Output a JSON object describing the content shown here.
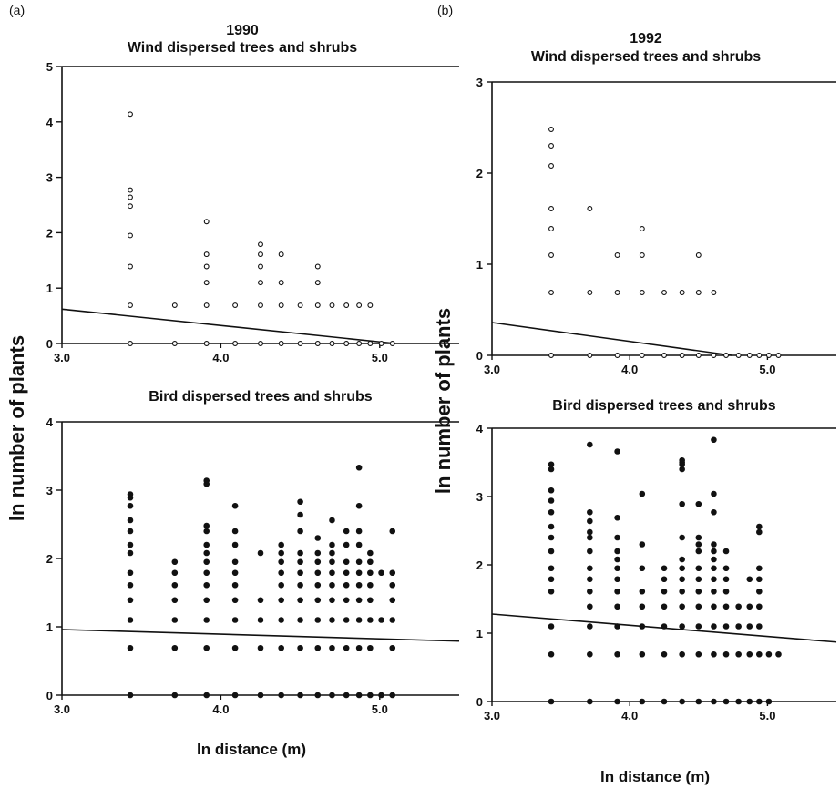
{
  "figure": {
    "y_axis_label_left": "ln number of plants",
    "y_axis_label_right": "ln number of plants"
  },
  "chart_data": [
    {
      "type": "scatter",
      "panel_label": "(a)",
      "title": "1990",
      "subtitle": "Wind dispersed trees and shrubs",
      "xlabel": "",
      "ylabel": "ln number of plants",
      "xlim": [
        3.0,
        5.5
      ],
      "ylim": [
        0,
        5
      ],
      "xticks": [
        3.0,
        4.0,
        5.0
      ],
      "xtick_labels": [
        "3.0",
        "4.0",
        "5.0"
      ],
      "yticks": [
        0,
        1,
        2,
        3,
        4,
        5
      ],
      "ytick_labels": [
        "0",
        "1",
        "2",
        "3",
        "4",
        "5"
      ],
      "marker": "open",
      "regression_line": {
        "x": [
          3.0,
          5.1
        ],
        "y": [
          0.62,
          0.0
        ]
      },
      "points": [
        [
          3.43,
          0
        ],
        [
          3.71,
          0
        ],
        [
          3.91,
          0
        ],
        [
          4.09,
          0
        ],
        [
          4.25,
          0
        ],
        [
          4.38,
          0
        ],
        [
          4.5,
          0
        ],
        [
          4.61,
          0
        ],
        [
          4.7,
          0
        ],
        [
          4.79,
          0
        ],
        [
          4.87,
          0
        ],
        [
          4.94,
          0
        ],
        [
          5.01,
          0
        ],
        [
          5.08,
          0
        ],
        [
          3.43,
          0.69
        ],
        [
          3.43,
          1.39
        ],
        [
          3.43,
          1.95
        ],
        [
          3.43,
          2.48
        ],
        [
          3.43,
          2.64
        ],
        [
          3.43,
          2.77
        ],
        [
          3.43,
          4.14
        ],
        [
          3.71,
          0.69
        ],
        [
          3.91,
          0.69
        ],
        [
          3.91,
          1.1
        ],
        [
          3.91,
          1.39
        ],
        [
          3.91,
          1.61
        ],
        [
          3.91,
          2.2
        ],
        [
          4.09,
          0.69
        ],
        [
          4.25,
          0.69
        ],
        [
          4.25,
          1.1
        ],
        [
          4.25,
          1.39
        ],
        [
          4.25,
          1.61
        ],
        [
          4.25,
          1.79
        ],
        [
          4.38,
          0.69
        ],
        [
          4.38,
          1.1
        ],
        [
          4.38,
          1.61
        ],
        [
          4.5,
          0.69
        ],
        [
          4.61,
          0.69
        ],
        [
          4.61,
          1.1
        ],
        [
          4.61,
          1.39
        ],
        [
          4.7,
          0.69
        ],
        [
          4.79,
          0.69
        ],
        [
          4.87,
          0.69
        ],
        [
          4.94,
          0.69
        ]
      ]
    },
    {
      "type": "scatter",
      "panel_label": "(b)",
      "title": "1992",
      "subtitle": "Wind dispersed trees and shrubs",
      "xlabel": "",
      "ylabel": "ln number of plants",
      "xlim": [
        3.0,
        5.5
      ],
      "ylim": [
        0,
        3
      ],
      "xticks": [
        3.0,
        4.0,
        5.0
      ],
      "xtick_labels": [
        "3.0",
        "4.0",
        "5.0"
      ],
      "yticks": [
        0,
        1,
        2,
        3
      ],
      "ytick_labels": [
        "0",
        "1",
        "2",
        "3"
      ],
      "marker": "open",
      "regression_line": {
        "x": [
          3.0,
          4.74
        ],
        "y": [
          0.36,
          0.0
        ]
      },
      "points": [
        [
          3.43,
          0
        ],
        [
          3.71,
          0
        ],
        [
          3.91,
          0
        ],
        [
          4.09,
          0
        ],
        [
          4.25,
          0
        ],
        [
          4.38,
          0
        ],
        [
          4.5,
          0
        ],
        [
          4.61,
          0
        ],
        [
          4.7,
          0
        ],
        [
          4.79,
          0
        ],
        [
          4.87,
          0
        ],
        [
          4.94,
          0
        ],
        [
          5.01,
          0
        ],
        [
          5.08,
          0
        ],
        [
          3.43,
          0.69
        ],
        [
          3.43,
          1.1
        ],
        [
          3.43,
          1.39
        ],
        [
          3.43,
          1.61
        ],
        [
          3.43,
          2.08
        ],
        [
          3.43,
          2.3
        ],
        [
          3.43,
          2.48
        ],
        [
          3.71,
          0.69
        ],
        [
          3.71,
          1.61
        ],
        [
          3.91,
          0.69
        ],
        [
          3.91,
          1.1
        ],
        [
          4.09,
          0.69
        ],
        [
          4.09,
          1.1
        ],
        [
          4.09,
          1.39
        ],
        [
          4.25,
          0.69
        ],
        [
          4.38,
          0.69
        ],
        [
          4.5,
          0.69
        ],
        [
          4.5,
          1.1
        ],
        [
          4.61,
          0.69
        ]
      ]
    },
    {
      "type": "scatter",
      "panel_label": "",
      "title": "Bird dispersed trees and shrubs",
      "xlabel": "ln distance (m)",
      "ylabel": "ln number of plants",
      "xlim": [
        3.0,
        5.5
      ],
      "ylim": [
        0,
        4
      ],
      "xticks": [
        3.0,
        4.0,
        5.0
      ],
      "xtick_labels": [
        "3.0",
        "4.0",
        "5.0"
      ],
      "yticks": [
        0,
        1,
        2,
        3,
        4
      ],
      "ytick_labels": [
        "0",
        "1",
        "2",
        "3",
        "4"
      ],
      "marker": "filled",
      "regression_line": {
        "x": [
          3.0,
          5.5
        ],
        "y": [
          0.96,
          0.79
        ]
      },
      "points": [
        [
          3.43,
          0
        ],
        [
          3.71,
          0
        ],
        [
          3.91,
          0
        ],
        [
          4.09,
          0
        ],
        [
          4.25,
          0
        ],
        [
          4.38,
          0
        ],
        [
          4.5,
          0
        ],
        [
          4.61,
          0
        ],
        [
          4.7,
          0
        ],
        [
          4.79,
          0
        ],
        [
          4.87,
          0
        ],
        [
          4.94,
          0
        ],
        [
          5.01,
          0
        ],
        [
          5.08,
          0
        ],
        [
          3.43,
          0.69
        ],
        [
          3.43,
          1.1
        ],
        [
          3.43,
          1.39
        ],
        [
          3.43,
          1.61
        ],
        [
          3.43,
          1.79
        ],
        [
          3.43,
          2.08
        ],
        [
          3.43,
          2.2
        ],
        [
          3.43,
          2.4
        ],
        [
          3.43,
          2.56
        ],
        [
          3.43,
          2.77
        ],
        [
          3.43,
          2.89
        ],
        [
          3.43,
          2.94
        ],
        [
          3.71,
          0.69
        ],
        [
          3.71,
          1.1
        ],
        [
          3.71,
          1.39
        ],
        [
          3.71,
          1.61
        ],
        [
          3.71,
          1.79
        ],
        [
          3.71,
          1.95
        ],
        [
          3.91,
          0.69
        ],
        [
          3.91,
          1.1
        ],
        [
          3.91,
          1.39
        ],
        [
          3.91,
          1.61
        ],
        [
          3.91,
          1.79
        ],
        [
          3.91,
          1.95
        ],
        [
          3.91,
          2.08
        ],
        [
          3.91,
          2.2
        ],
        [
          3.91,
          2.4
        ],
        [
          3.91,
          2.48
        ],
        [
          3.91,
          3.09
        ],
        [
          3.91,
          3.14
        ],
        [
          4.09,
          0.69
        ],
        [
          4.09,
          1.1
        ],
        [
          4.09,
          1.39
        ],
        [
          4.09,
          1.61
        ],
        [
          4.09,
          1.79
        ],
        [
          4.09,
          1.95
        ],
        [
          4.09,
          2.2
        ],
        [
          4.09,
          2.4
        ],
        [
          4.09,
          2.77
        ],
        [
          4.25,
          0.69
        ],
        [
          4.25,
          1.1
        ],
        [
          4.25,
          1.39
        ],
        [
          4.25,
          2.08
        ],
        [
          4.38,
          0.69
        ],
        [
          4.38,
          1.1
        ],
        [
          4.38,
          1.39
        ],
        [
          4.38,
          1.61
        ],
        [
          4.38,
          1.79
        ],
        [
          4.38,
          1.95
        ],
        [
          4.38,
          2.08
        ],
        [
          4.38,
          2.2
        ],
        [
          4.5,
          0.69
        ],
        [
          4.5,
          1.1
        ],
        [
          4.5,
          1.39
        ],
        [
          4.5,
          1.61
        ],
        [
          4.5,
          1.79
        ],
        [
          4.5,
          1.95
        ],
        [
          4.5,
          2.08
        ],
        [
          4.5,
          2.4
        ],
        [
          4.5,
          2.64
        ],
        [
          4.5,
          2.83
        ],
        [
          4.61,
          0.69
        ],
        [
          4.61,
          1.1
        ],
        [
          4.61,
          1.39
        ],
        [
          4.61,
          1.61
        ],
        [
          4.61,
          1.79
        ],
        [
          4.61,
          1.95
        ],
        [
          4.61,
          2.08
        ],
        [
          4.61,
          2.3
        ],
        [
          4.7,
          0.69
        ],
        [
          4.7,
          1.1
        ],
        [
          4.7,
          1.39
        ],
        [
          4.7,
          1.61
        ],
        [
          4.7,
          1.79
        ],
        [
          4.7,
          1.95
        ],
        [
          4.7,
          2.08
        ],
        [
          4.7,
          2.2
        ],
        [
          4.7,
          2.56
        ],
        [
          4.79,
          0.69
        ],
        [
          4.79,
          1.1
        ],
        [
          4.79,
          1.39
        ],
        [
          4.79,
          1.61
        ],
        [
          4.79,
          1.79
        ],
        [
          4.79,
          1.95
        ],
        [
          4.79,
          2.2
        ],
        [
          4.79,
          2.4
        ],
        [
          4.87,
          0.69
        ],
        [
          4.87,
          1.1
        ],
        [
          4.87,
          1.39
        ],
        [
          4.87,
          1.61
        ],
        [
          4.87,
          1.79
        ],
        [
          4.87,
          1.95
        ],
        [
          4.87,
          2.2
        ],
        [
          4.87,
          2.4
        ],
        [
          4.87,
          2.77
        ],
        [
          4.87,
          3.33
        ],
        [
          4.94,
          0.69
        ],
        [
          4.94,
          1.1
        ],
        [
          4.94,
          1.39
        ],
        [
          4.94,
          1.61
        ],
        [
          4.94,
          1.79
        ],
        [
          4.94,
          1.95
        ],
        [
          4.94,
          2.08
        ],
        [
          5.01,
          1.1
        ],
        [
          5.01,
          1.79
        ],
        [
          5.08,
          0.69
        ],
        [
          5.08,
          1.1
        ],
        [
          5.08,
          1.39
        ],
        [
          5.08,
          1.61
        ],
        [
          5.08,
          1.79
        ],
        [
          5.08,
          2.4
        ]
      ]
    },
    {
      "type": "scatter",
      "panel_label": "",
      "title": "Bird dispersed trees and shrubs",
      "xlabel": "ln distance (m)",
      "ylabel": "ln number of plants",
      "xlim": [
        3.0,
        5.5
      ],
      "ylim": [
        0,
        4
      ],
      "xticks": [
        3.0,
        4.0,
        5.0
      ],
      "xtick_labels": [
        "3.0",
        "4.0",
        "5.0"
      ],
      "yticks": [
        0,
        1,
        2,
        3,
        4
      ],
      "ytick_labels": [
        "0",
        "1",
        "2",
        "3",
        "4"
      ],
      "marker": "filled",
      "regression_line": {
        "x": [
          3.0,
          5.5
        ],
        "y": [
          1.28,
          0.87
        ]
      },
      "points": [
        [
          3.43,
          0
        ],
        [
          3.71,
          0
        ],
        [
          3.91,
          0
        ],
        [
          4.09,
          0
        ],
        [
          4.25,
          0
        ],
        [
          4.38,
          0
        ],
        [
          4.5,
          0
        ],
        [
          4.61,
          0
        ],
        [
          4.7,
          0
        ],
        [
          4.79,
          0
        ],
        [
          4.87,
          0
        ],
        [
          4.94,
          0
        ],
        [
          5.01,
          0
        ],
        [
          3.43,
          0.69
        ],
        [
          3.43,
          1.1
        ],
        [
          3.43,
          1.61
        ],
        [
          3.43,
          1.79
        ],
        [
          3.43,
          1.95
        ],
        [
          3.43,
          2.2
        ],
        [
          3.43,
          2.4
        ],
        [
          3.43,
          2.56
        ],
        [
          3.43,
          2.77
        ],
        [
          3.43,
          2.94
        ],
        [
          3.43,
          3.09
        ],
        [
          3.43,
          3.4
        ],
        [
          3.43,
          3.47
        ],
        [
          3.71,
          0.69
        ],
        [
          3.71,
          1.1
        ],
        [
          3.71,
          1.39
        ],
        [
          3.71,
          1.61
        ],
        [
          3.71,
          1.79
        ],
        [
          3.71,
          1.95
        ],
        [
          3.71,
          2.2
        ],
        [
          3.71,
          2.4
        ],
        [
          3.71,
          2.48
        ],
        [
          3.71,
          2.64
        ],
        [
          3.71,
          2.77
        ],
        [
          3.71,
          3.76
        ],
        [
          3.91,
          0.69
        ],
        [
          3.91,
          1.1
        ],
        [
          3.91,
          1.39
        ],
        [
          3.91,
          1.61
        ],
        [
          3.91,
          1.79
        ],
        [
          3.91,
          1.95
        ],
        [
          3.91,
          2.08
        ],
        [
          3.91,
          2.2
        ],
        [
          3.91,
          2.4
        ],
        [
          3.91,
          2.69
        ],
        [
          3.91,
          3.66
        ],
        [
          4.09,
          0.69
        ],
        [
          4.09,
          1.1
        ],
        [
          4.09,
          1.39
        ],
        [
          4.09,
          1.61
        ],
        [
          4.09,
          1.95
        ],
        [
          4.09,
          2.3
        ],
        [
          4.09,
          3.04
        ],
        [
          4.25,
          0.69
        ],
        [
          4.25,
          1.1
        ],
        [
          4.25,
          1.39
        ],
        [
          4.25,
          1.61
        ],
        [
          4.25,
          1.79
        ],
        [
          4.25,
          1.95
        ],
        [
          4.38,
          0.69
        ],
        [
          4.38,
          1.1
        ],
        [
          4.38,
          1.39
        ],
        [
          4.38,
          1.61
        ],
        [
          4.38,
          1.79
        ],
        [
          4.38,
          1.95
        ],
        [
          4.38,
          2.08
        ],
        [
          4.38,
          2.4
        ],
        [
          4.38,
          2.89
        ],
        [
          4.38,
          3.4
        ],
        [
          4.38,
          3.47
        ],
        [
          4.38,
          3.5
        ],
        [
          4.38,
          3.53
        ],
        [
          4.5,
          0.69
        ],
        [
          4.5,
          1.1
        ],
        [
          4.5,
          1.39
        ],
        [
          4.5,
          1.61
        ],
        [
          4.5,
          1.79
        ],
        [
          4.5,
          1.95
        ],
        [
          4.5,
          2.2
        ],
        [
          4.5,
          2.3
        ],
        [
          4.5,
          2.4
        ],
        [
          4.5,
          2.89
        ],
        [
          4.61,
          0.69
        ],
        [
          4.61,
          1.1
        ],
        [
          4.61,
          1.39
        ],
        [
          4.61,
          1.61
        ],
        [
          4.61,
          1.79
        ],
        [
          4.61,
          1.95
        ],
        [
          4.61,
          2.08
        ],
        [
          4.61,
          2.2
        ],
        [
          4.61,
          2.3
        ],
        [
          4.61,
          2.77
        ],
        [
          4.61,
          3.04
        ],
        [
          4.61,
          3.83
        ],
        [
          4.7,
          0.69
        ],
        [
          4.7,
          1.1
        ],
        [
          4.7,
          1.39
        ],
        [
          4.7,
          1.61
        ],
        [
          4.7,
          1.79
        ],
        [
          4.7,
          1.95
        ],
        [
          4.7,
          2.2
        ],
        [
          4.79,
          0.69
        ],
        [
          4.79,
          1.1
        ],
        [
          4.79,
          1.39
        ],
        [
          4.87,
          0.69
        ],
        [
          4.87,
          1.1
        ],
        [
          4.87,
          1.39
        ],
        [
          4.87,
          1.79
        ],
        [
          4.94,
          0.69
        ],
        [
          4.94,
          1.1
        ],
        [
          4.94,
          1.39
        ],
        [
          4.94,
          1.61
        ],
        [
          4.94,
          1.79
        ],
        [
          4.94,
          1.95
        ],
        [
          4.94,
          2.48
        ],
        [
          4.94,
          2.56
        ],
        [
          5.01,
          0.69
        ],
        [
          5.08,
          0.69
        ]
      ]
    }
  ]
}
